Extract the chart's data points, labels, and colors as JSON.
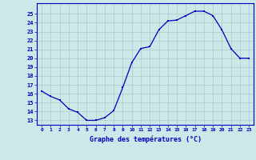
{
  "hours": [
    0,
    1,
    2,
    3,
    4,
    5,
    6,
    7,
    8,
    9,
    10,
    11,
    12,
    13,
    14,
    15,
    16,
    17,
    18,
    19,
    20,
    21,
    22,
    23
  ],
  "temps": [
    16.3,
    15.7,
    15.3,
    14.3,
    13.9,
    13.0,
    13.0,
    13.3,
    14.1,
    16.7,
    19.5,
    21.1,
    21.3,
    23.2,
    24.2,
    24.3,
    24.8,
    25.3,
    25.3,
    24.8,
    23.2,
    21.1,
    20.0,
    20.0
  ],
  "line_color": "#0000bb",
  "marker_color": "#0000bb",
  "bg_color": "#cce8e8",
  "grid_color": "#b0d0d0",
  "xlabel": "Graphe des températures (°C)",
  "ylim_low": 12.5,
  "ylim_high": 26.2,
  "yticks": [
    13,
    14,
    15,
    16,
    17,
    18,
    19,
    20,
    21,
    22,
    23,
    24,
    25
  ],
  "xlabel_color": "#0000bb",
  "axis_color": "#0000bb",
  "tick_color": "#0000bb",
  "plot_bg": "#cce8e8",
  "border_color": "#0000bb"
}
